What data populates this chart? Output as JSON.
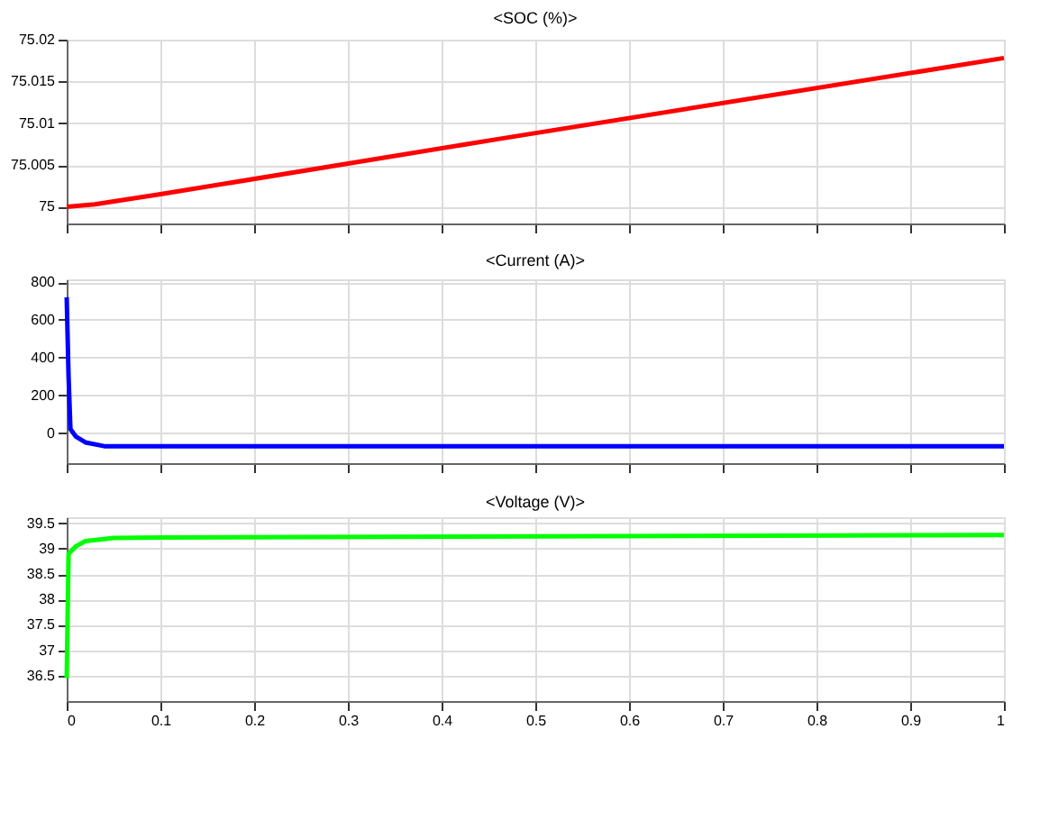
{
  "chart_data": [
    {
      "type": "line",
      "title": "<SOC (%)>",
      "x": [
        0,
        0.03,
        0.1,
        0.46,
        1
      ],
      "series": [
        {
          "color": "#ff0000",
          "values": [
            75,
            75.0003,
            75.0015,
            75.0081,
            75.0178
          ]
        }
      ],
      "xlim": [
        0,
        1
      ],
      "xticks": [
        0,
        0.1,
        0.2,
        0.3,
        0.4,
        0.5,
        0.6,
        0.7,
        0.8,
        0.9,
        1
      ],
      "ylim": [
        74.998,
        75.02
      ],
      "yticks": [
        75,
        75.005,
        75.01,
        75.015,
        75.02
      ],
      "grid": true,
      "tick_labels": "y"
    },
    {
      "type": "line",
      "title": "<Current (A)>",
      "x": [
        0,
        0.002,
        0.004,
        0.01,
        0.02,
        0.04,
        0.1,
        1
      ],
      "series": [
        {
          "color": "#0000ff",
          "values": [
            720,
            300,
            20,
            -20,
            -50,
            -70,
            -70,
            -70
          ]
        }
      ],
      "xlim": [
        0,
        1
      ],
      "xticks": [
        0,
        0.1,
        0.2,
        0.3,
        0.4,
        0.5,
        0.6,
        0.7,
        0.8,
        0.9,
        1
      ],
      "ylim": [
        -160,
        815
      ],
      "yticks": [
        0,
        200,
        400,
        600,
        800
      ],
      "grid": true,
      "tick_labels": "y"
    },
    {
      "type": "line",
      "title": "<Voltage (V)>",
      "x": [
        0,
        0.002,
        0.01,
        0.02,
        0.05,
        0.1,
        1
      ],
      "series": [
        {
          "color": "#00ff00",
          "values": [
            36.45,
            38.9,
            39.05,
            39.15,
            39.21,
            39.22,
            39.27
          ]
        }
      ],
      "xlim": [
        0,
        1
      ],
      "xticks": [
        0,
        0.1,
        0.2,
        0.3,
        0.4,
        0.5,
        0.6,
        0.7,
        0.8,
        0.9,
        1
      ],
      "ylim": [
        36,
        39.62
      ],
      "yticks": [
        36.5,
        37,
        37.5,
        38,
        38.5,
        39,
        39.5
      ],
      "grid": true
    }
  ]
}
